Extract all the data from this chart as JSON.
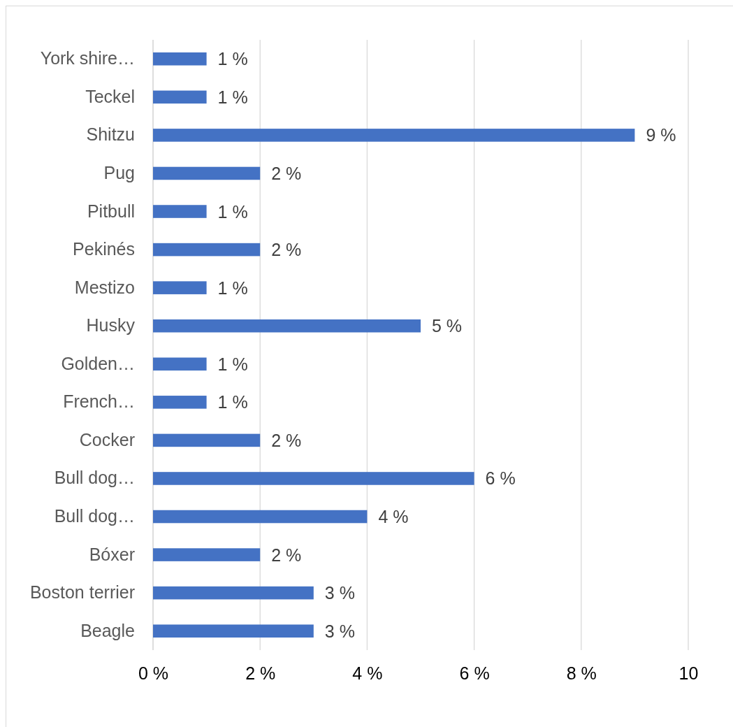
{
  "chart_data": {
    "type": "bar",
    "orientation": "horizontal",
    "categories": [
      "York shire…",
      "Teckel",
      "Shitzu",
      "Pug",
      "Pitbull",
      "Pekinés",
      "Mestizo",
      "Husky",
      "Golden…",
      "French…",
      "Cocker",
      "Bull dog…",
      "Bull dog…",
      "Bóxer",
      "Boston terrier",
      "Beagle"
    ],
    "values": [
      1,
      1,
      9,
      2,
      1,
      2,
      1,
      5,
      1,
      1,
      2,
      6,
      4,
      2,
      3,
      3
    ],
    "value_labels": [
      "1 %",
      "1 %",
      "9 %",
      "2 %",
      "1 %",
      "2 %",
      "1 %",
      "5 %",
      "1 %",
      "1 %",
      "2 %",
      "6 %",
      "4 %",
      "2 %",
      "3 %",
      "3 %"
    ],
    "color": "#4472c4",
    "xlim": [
      0,
      10
    ],
    "xticks": [
      {
        "value": 0,
        "label": "0 %"
      },
      {
        "value": 2,
        "label": "2 %"
      },
      {
        "value": 4,
        "label": "4 %"
      },
      {
        "value": 6,
        "label": "6 %"
      },
      {
        "value": 8,
        "label": "8 %"
      },
      {
        "value": 10,
        "label": "10"
      }
    ],
    "grid": "x"
  }
}
